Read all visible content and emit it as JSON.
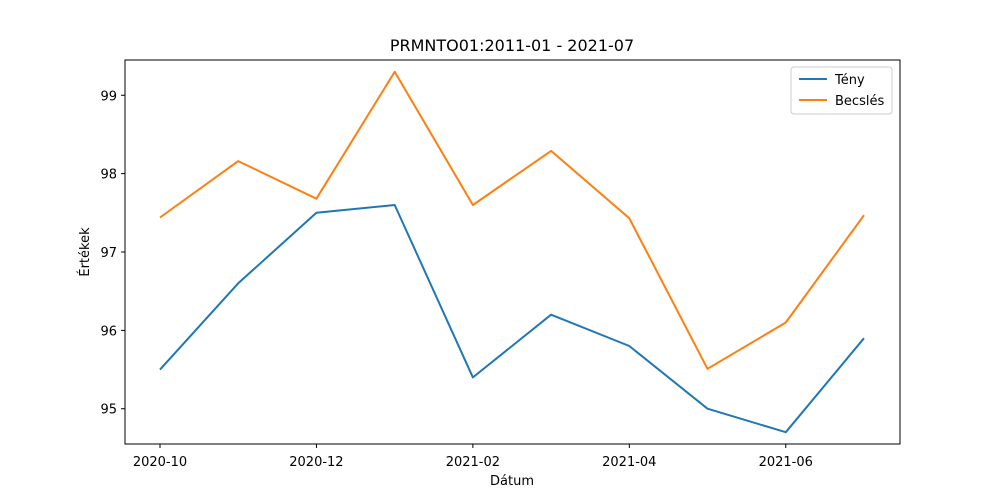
{
  "chart_data": {
    "type": "line",
    "title": "PRMNTO01:2011-01 - 2021-07",
    "xlabel": "Dátum",
    "ylabel": "Értékek",
    "x": [
      "2020-10",
      "2020-11",
      "2020-12",
      "2021-01",
      "2021-02",
      "2021-03",
      "2021-04",
      "2021-05",
      "2021-06",
      "2021-07"
    ],
    "x_ticks": [
      "2020-10",
      "2020-12",
      "2021-02",
      "2021-04",
      "2021-06"
    ],
    "y_ticks": [
      95,
      96,
      97,
      98,
      99
    ],
    "ylim": [
      94.55,
      99.45
    ],
    "grid": false,
    "legend_position": "top-right",
    "series": [
      {
        "name": "Tény",
        "color": "#1f77b4",
        "values": [
          95.5,
          96.6,
          97.5,
          97.6,
          95.4,
          96.2,
          95.8,
          95.0,
          94.7,
          95.9
        ]
      },
      {
        "name": "Becslés",
        "color": "#ff7f0e",
        "values": [
          97.44,
          98.16,
          97.68,
          99.3,
          97.6,
          98.29,
          97.43,
          95.51,
          96.1,
          97.47
        ]
      }
    ]
  }
}
